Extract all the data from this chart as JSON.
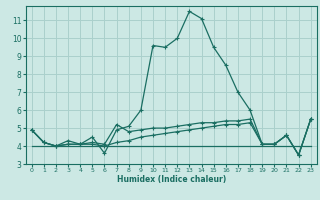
{
  "title": "",
  "xlabel": "Humidex (Indice chaleur)",
  "ylabel": "",
  "bg_color": "#cce8e4",
  "grid_color": "#aad0cc",
  "line_color": "#1a6e62",
  "spine_color": "#1a6e62",
  "xlim": [
    -0.5,
    23.5
  ],
  "ylim": [
    3.0,
    11.8
  ],
  "yticks": [
    3,
    4,
    5,
    6,
    7,
    8,
    9,
    10,
    11
  ],
  "xticks": [
    0,
    1,
    2,
    3,
    4,
    5,
    6,
    7,
    8,
    9,
    10,
    11,
    12,
    13,
    14,
    15,
    16,
    17,
    18,
    19,
    20,
    21,
    22,
    23
  ],
  "line1_x": [
    0,
    1,
    2,
    3,
    4,
    5,
    6,
    7,
    8,
    9,
    10,
    11,
    12,
    13,
    14,
    15,
    16,
    17,
    18,
    19,
    20,
    21,
    22,
    23
  ],
  "line1_y": [
    4.9,
    4.2,
    4.0,
    4.3,
    4.1,
    4.5,
    3.6,
    4.9,
    5.1,
    6.0,
    9.6,
    9.5,
    10.0,
    11.5,
    11.1,
    9.5,
    8.5,
    7.0,
    6.0,
    4.1,
    4.1,
    4.6,
    3.5,
    5.5
  ],
  "line2_x": [
    0,
    1,
    2,
    3,
    4,
    5,
    6,
    7,
    8,
    9,
    10,
    11,
    12,
    13,
    14,
    15,
    16,
    17,
    18,
    19,
    20,
    21,
    22,
    23
  ],
  "line2_y": [
    4.9,
    4.2,
    4.0,
    4.1,
    4.1,
    4.2,
    4.1,
    5.2,
    4.8,
    4.9,
    5.0,
    5.0,
    5.1,
    5.2,
    5.3,
    5.3,
    5.4,
    5.4,
    5.5,
    4.1,
    4.1,
    4.6,
    3.5,
    5.5
  ],
  "line3_x": [
    0,
    1,
    2,
    3,
    4,
    5,
    6,
    7,
    8,
    9,
    10,
    11,
    12,
    13,
    14,
    15,
    16,
    17,
    18,
    19,
    20,
    21,
    22,
    23
  ],
  "line3_y": [
    4.9,
    4.2,
    4.0,
    4.1,
    4.1,
    4.1,
    4.0,
    4.2,
    4.3,
    4.5,
    4.6,
    4.7,
    4.8,
    4.9,
    5.0,
    5.1,
    5.2,
    5.2,
    5.3,
    4.1,
    4.1,
    4.6,
    3.5,
    5.5
  ],
  "line4_x": [
    0,
    1,
    2,
    3,
    4,
    5,
    6,
    7,
    8,
    9,
    10,
    11,
    12,
    13,
    14,
    15,
    16,
    17,
    18,
    19,
    20,
    21,
    22,
    23
  ],
  "line4_y": [
    4.0,
    4.0,
    4.0,
    4.0,
    4.0,
    4.0,
    4.0,
    4.0,
    4.0,
    4.0,
    4.0,
    4.0,
    4.0,
    4.0,
    4.0,
    4.0,
    4.0,
    4.0,
    4.0,
    4.0,
    4.0,
    4.0,
    4.0,
    4.0
  ]
}
